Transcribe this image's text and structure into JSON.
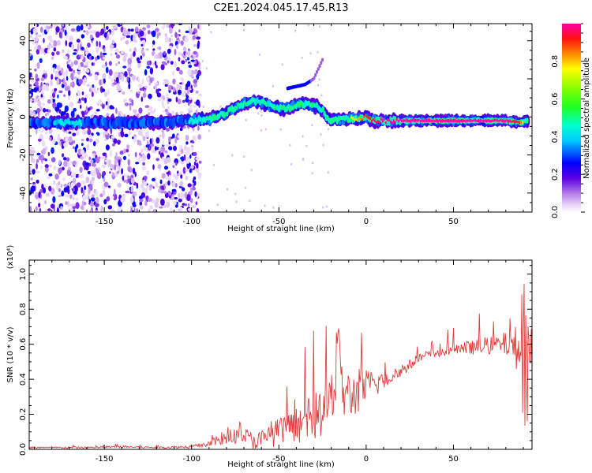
{
  "title": "C2E1.2024.045.17.45.R13",
  "chart_data": [
    {
      "type": "heatmap",
      "xlabel": "Height of straight line (km)",
      "ylabel": "Frequency (Hz)",
      "xlim": [
        -193,
        95
      ],
      "ylim": [
        -50,
        49
      ],
      "xticks": [
        -150,
        -100,
        -50,
        0,
        50
      ],
      "yticks": [
        -40,
        -20,
        0,
        20,
        40
      ],
      "colorbar": {
        "label": "Normalized spectral amplitude",
        "range": [
          0,
          1
        ],
        "ticks": [
          0.0,
          0.2,
          0.4,
          0.6,
          0.8
        ]
      },
      "noise_region_x": [
        -193,
        -95
      ],
      "ridge": {
        "x": [
          -193,
          -170,
          -150,
          -130,
          -115,
          -105,
          -100,
          -90,
          -80,
          -75,
          -70,
          -65,
          -60,
          -55,
          -50,
          -45,
          -40,
          -35,
          -30,
          -25,
          -22,
          -20,
          -15,
          -10,
          -5,
          0,
          5,
          10,
          20,
          40,
          60,
          80,
          88,
          93
        ],
        "y": [
          -3,
          -3,
          -3,
          -3,
          -3,
          -2,
          -2,
          -1,
          2,
          5,
          7,
          8,
          8,
          6,
          4,
          5,
          6,
          7,
          6,
          4,
          -1,
          -2,
          -1,
          -1,
          -1,
          0,
          -2,
          -2,
          -2,
          -2,
          -2,
          -2,
          -3,
          -2
        ],
        "amplitude": [
          0.35,
          0.4,
          0.35,
          0.3,
          0.32,
          0.35,
          0.4,
          0.5,
          0.55,
          0.55,
          0.5,
          0.45,
          0.45,
          0.45,
          0.5,
          0.5,
          0.55,
          0.5,
          0.5,
          0.45,
          0.6,
          0.7,
          0.65,
          0.7,
          0.8,
          0.9,
          0.95,
          1.0,
          1.0,
          1.0,
          1.0,
          1.0,
          0.9,
          0.5
        ]
      },
      "spur": {
        "x": [
          -45,
          -40,
          -35,
          -30,
          -28,
          -26,
          -25
        ],
        "y": [
          15,
          16,
          17,
          20,
          24,
          28,
          30
        ]
      }
    },
    {
      "type": "line",
      "xlabel": "Height of straight line (km)",
      "ylabel": "SNR (10 * v/v)",
      "y_scale_label": "(x10⁴)",
      "xlim": [
        -193,
        95
      ],
      "ylim": [
        0,
        1.08
      ],
      "xticks": [
        -150,
        -100,
        -50,
        0,
        50
      ],
      "yticks": [
        0.0,
        0.2,
        0.4,
        0.6,
        0.8,
        1.0
      ],
      "color": "#e23b3b",
      "series": [
        {
          "x": [
            -193,
            -180,
            -160,
            -140,
            -120,
            -100,
            -90,
            -85,
            -80,
            -75,
            -72,
            -70,
            -65,
            -60,
            -55,
            -50,
            -45,
            -40,
            -35,
            -30,
            -25,
            -20,
            -17,
            -15,
            -10,
            -5,
            0,
            5,
            10,
            15,
            20,
            25,
            30,
            40,
            50,
            60,
            70,
            80,
            85,
            88,
            90,
            91,
            92,
            93
          ],
          "y": [
            0.01,
            0.01,
            0.01,
            0.015,
            0.01,
            0.015,
            0.03,
            0.05,
            0.06,
            0.07,
            0.12,
            0.08,
            0.05,
            0.05,
            0.08,
            0.1,
            0.12,
            0.14,
            0.16,
            0.18,
            0.22,
            0.28,
            0.4,
            0.35,
            0.3,
            0.32,
            0.36,
            0.37,
            0.4,
            0.42,
            0.45,
            0.48,
            0.52,
            0.55,
            0.57,
            0.58,
            0.59,
            0.6,
            0.6,
            0.55,
            0.5,
            0.9,
            0.3,
            0.5
          ],
          "noise": [
            0.005,
            0.005,
            0.005,
            0.006,
            0.006,
            0.008,
            0.02,
            0.03,
            0.04,
            0.04,
            0.05,
            0.05,
            0.05,
            0.06,
            0.07,
            0.08,
            0.08,
            0.1,
            0.12,
            0.13,
            0.15,
            0.18,
            0.2,
            0.18,
            0.15,
            0.12,
            0.1,
            0.08,
            0.06,
            0.05,
            0.04,
            0.03,
            0.03,
            0.03,
            0.03,
            0.04,
            0.05,
            0.07,
            0.1,
            0.18,
            0.25,
            0.25,
            0.25,
            0.2
          ]
        }
      ]
    }
  ]
}
